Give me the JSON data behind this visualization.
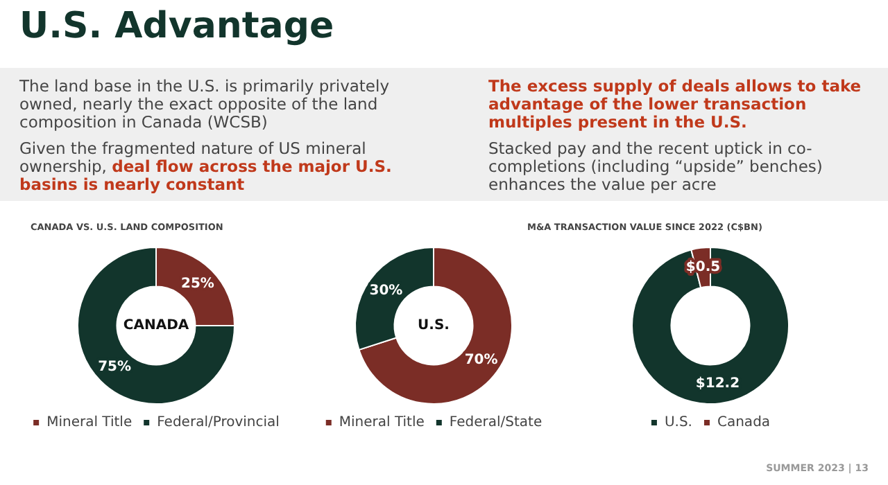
{
  "chart_data": [
    {
      "type": "other",
      "title": "U.S. Advantage",
      "annotations": [
        "The land base in the U.S. is primarily privately owned, nearly the exact opposite of the land composition in Canada (WCSB)",
        "Given the fragmented nature of US mineral ownership,",
        "deal flow across the major U.S. basins is nearly constant",
        "The excess supply of deals allows to take advantage of the lower transaction multiples present in the U.S.",
        "Stacked pay and the recent uptick in co-completions (including “upside” benches) enhances the value per acre",
        "SUMMER 2023  |  13"
      ]
    },
    {
      "type": "donut",
      "title": "CANADA VS. U.S. LAND COMPOSITION",
      "annotations": [
        "CANADA"
      ],
      "categories": [
        "Mineral Title",
        "Federal/Provincial"
      ],
      "values": [
        25,
        75
      ],
      "colors": [
        "#7b2d26",
        "#12352c"
      ],
      "value_labels": [
        "25%",
        "75%"
      ],
      "legend": "bottom"
    },
    {
      "type": "donut",
      "annotations": [
        "U.S."
      ],
      "categories": [
        "Mineral Title",
        "Federal/State"
      ],
      "values": [
        70,
        30
      ],
      "colors": [
        "#7b2d26",
        "#12352c"
      ],
      "value_labels": [
        "70%",
        "30%"
      ],
      "legend": "bottom"
    },
    {
      "type": "donut",
      "title": "M&A TRANSACTION VALUE SINCE 2022 (C$BN)",
      "categories": [
        "U.S.",
        "Canada"
      ],
      "values": [
        12.2,
        0.5
      ],
      "colors": [
        "#12352c",
        "#7b2d26"
      ],
      "value_labels": [
        "$12.2",
        "$0.5"
      ],
      "legend": "bottom"
    }
  ]
}
